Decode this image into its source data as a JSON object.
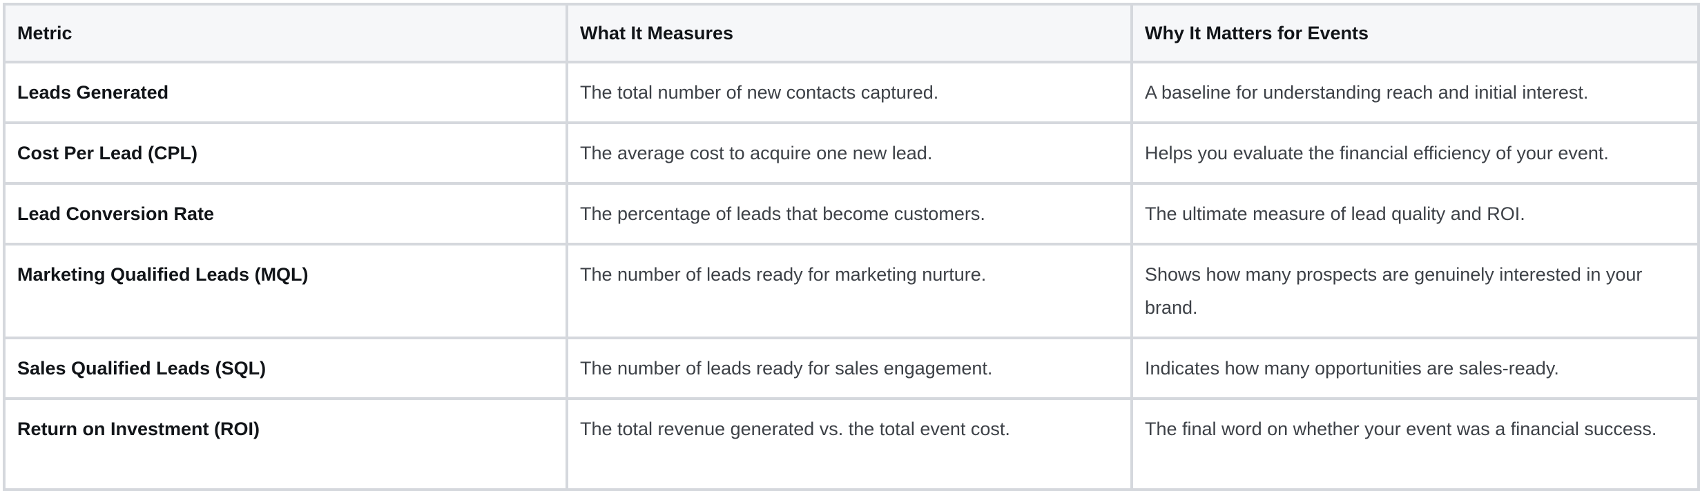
{
  "table": {
    "headers": [
      "Metric",
      "What It Measures",
      "Why It Matters for Events"
    ],
    "rows": [
      {
        "metric": "Leads Generated",
        "measures": "The total number of new contacts captured.",
        "matters": "A baseline for understanding reach and initial interest."
      },
      {
        "metric": "Cost Per Lead (CPL)",
        "measures": "The average cost to acquire one new lead.",
        "matters": "Helps you evaluate the financial efficiency of your event."
      },
      {
        "metric": "Lead Conversion Rate",
        "measures": "The percentage of leads that become customers.",
        "matters": "The ultimate measure of lead quality and ROI."
      },
      {
        "metric": "Marketing Qualified Leads (MQL)",
        "measures": "The number of leads ready for marketing nurture.",
        "matters": "Shows how many prospects are genuinely interested in your brand."
      },
      {
        "metric": "Sales Qualified Leads (SQL)",
        "measures": "The number of leads ready for sales engagement.",
        "matters": "Indicates how many opportunities are sales-ready."
      },
      {
        "metric": "Return on Investment (ROI)",
        "measures": "The total revenue generated vs. the total event cost.",
        "matters": "The final word on whether your event was a financial success."
      }
    ]
  },
  "colors": {
    "border": "#d5d8dd",
    "header_bg": "#f6f7f9",
    "heading_text": "#111418",
    "body_text": "#3d4147"
  }
}
